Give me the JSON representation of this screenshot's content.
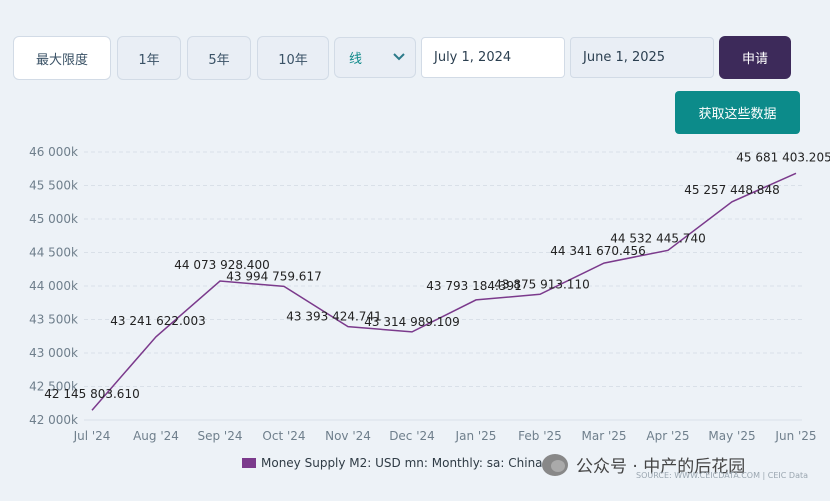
{
  "controls": {
    "ranges": [
      "最大限度",
      "1年",
      "5年",
      "10年"
    ],
    "active_range": "最大限度",
    "chart_type": "线",
    "start_date": "July 1, 2024",
    "end_date": "June 1, 2025",
    "apply_label": "申请",
    "fetch_label": "获取这些数据"
  },
  "legend_label": "Money Supply M2: USD mn: Monthly: sa: China",
  "watermark_text": "公众号 · 中产的后花园",
  "source_text": "SOURCE: WWW.CEICDATA.COM | CEIC Data",
  "colors": {
    "line": "#7b3a8c",
    "apply": "#3d2a5a",
    "fetch": "#0c8b8a"
  },
  "chart_data": {
    "type": "line",
    "categories": [
      "Jul '24",
      "Aug '24",
      "Sep '24",
      "Oct '24",
      "Nov '24",
      "Dec '24",
      "Jan '25",
      "Feb '25",
      "Mar '25",
      "Apr '25",
      "May '25",
      "Jun '25"
    ],
    "series": [
      {
        "name": "Money Supply M2: USD mn: Monthly: sa: China",
        "values": [
          42145803.61,
          43241622.003,
          44073928.4,
          43994759.617,
          43393424.741,
          43314989.109,
          43793184.391,
          43875913.11,
          44341670.456,
          44532445.74,
          45257448.848,
          45681403.205
        ],
        "labels": [
          "42 145 803.610",
          "43 241 622.003",
          "44 073 928.400",
          "43 994 759.617",
          "43 393 424.741",
          "43 314 989.109",
          "43 793 184.391",
          "43 875 913.110",
          "44 341 670.456",
          "44 532 445.740",
          "45 257 448.848",
          "45 681 403.205"
        ]
      }
    ],
    "y_ticks": [
      "42 000k",
      "42 500k",
      "43 000k",
      "43 500k",
      "44 000k",
      "44 500k",
      "45 000k",
      "45 500k",
      "46 000k"
    ],
    "ylim": [
      42000000,
      46000000
    ],
    "grid": true,
    "legend": "bottom-center"
  }
}
